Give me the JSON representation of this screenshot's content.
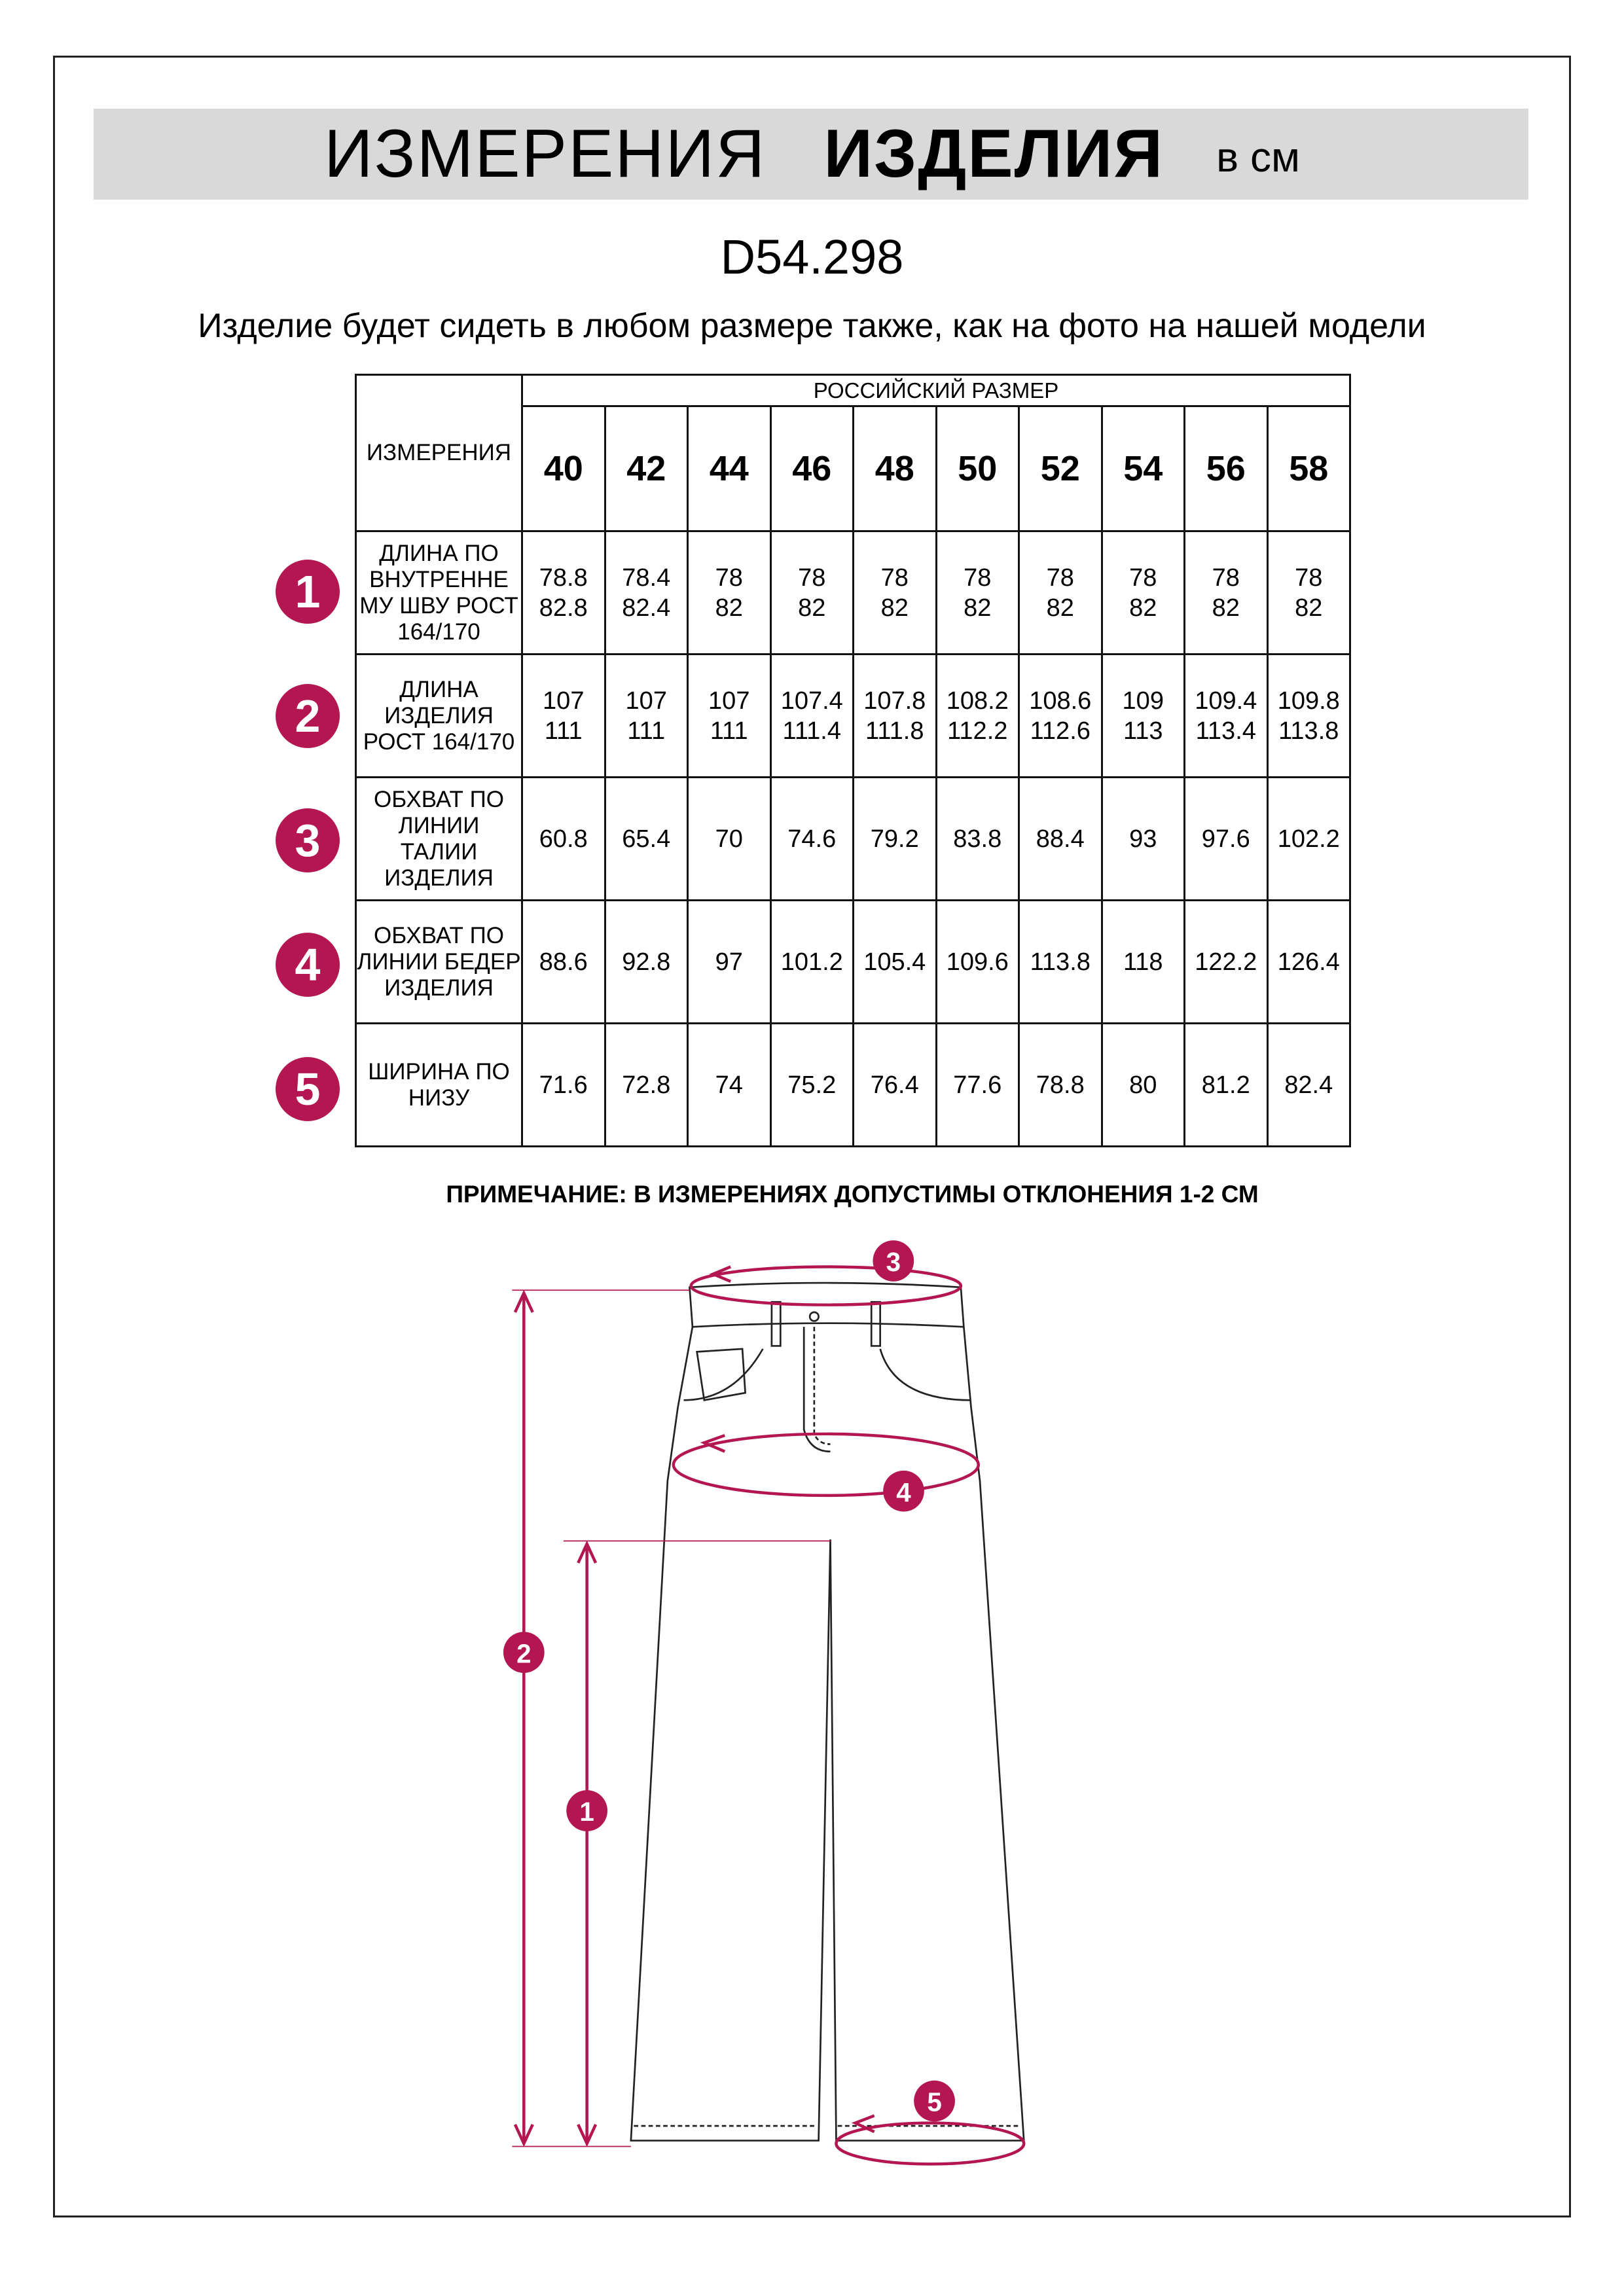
{
  "header": {
    "title_regular": "ИЗМЕРЕНИЯ",
    "title_bold": "ИЗДЕЛИЯ",
    "unit": "в см"
  },
  "product_code": "D54.298",
  "subtitle": "Изделие будет сидеть в любом размере также, как на фото на нашей модели",
  "table": {
    "corner_label": "ИЗМЕРЕНИЯ",
    "size_group_label": "РОССИЙСКИЙ РАЗМЕР",
    "sizes": [
      "40",
      "42",
      "44",
      "46",
      "48",
      "50",
      "52",
      "54",
      "56",
      "58"
    ],
    "rows": [
      {
        "badge": "1",
        "label": "ДЛИНА ПО ВНУТРЕННЕ МУ ШВУ РОСТ 164/170",
        "values": [
          "78.8\n82.8",
          "78.4\n82.4",
          "78\n82",
          "78\n82",
          "78\n82",
          "78\n82",
          "78\n82",
          "78\n82",
          "78\n82",
          "78\n82"
        ]
      },
      {
        "badge": "2",
        "label": "ДЛИНА ИЗДЕЛИЯ РОСТ 164/170",
        "values": [
          "107\n111",
          "107\n111",
          "107\n111",
          "107.4\n111.4",
          "107.8\n111.8",
          "108.2\n112.2",
          "108.6\n112.6",
          "109\n113",
          "109.4\n113.4",
          "109.8\n113.8"
        ]
      },
      {
        "badge": "3",
        "label": "ОБХВАТ ПО ЛИНИИ ТАЛИИ ИЗДЕЛИЯ",
        "values": [
          "60.8",
          "65.4",
          "70",
          "74.6",
          "79.2",
          "83.8",
          "88.4",
          "93",
          "97.6",
          "102.2"
        ]
      },
      {
        "badge": "4",
        "label": "ОБХВАТ ПО ЛИНИИ БЕДЕР ИЗДЕЛИЯ",
        "values": [
          "88.6",
          "92.8",
          "97",
          "101.2",
          "105.4",
          "109.6",
          "113.8",
          "118",
          "122.2",
          "126.4"
        ]
      },
      {
        "badge": "5",
        "label": "ШИРИНА ПО НИЗУ",
        "values": [
          "71.6",
          "72.8",
          "74",
          "75.2",
          "76.4",
          "77.6",
          "78.8",
          "80",
          "81.2",
          "82.4"
        ]
      }
    ]
  },
  "note": "ПРИМЕЧАНИЕ: В ИЗМЕРЕНИЯХ ДОПУСТИМЫ ОТКЛОНЕНИЯ 1-2 СМ",
  "diagram": {
    "badges": [
      "1",
      "2",
      "3",
      "4",
      "5"
    ]
  },
  "colors": {
    "accent": "#b31650",
    "title_bar": "#d9d9d9"
  }
}
